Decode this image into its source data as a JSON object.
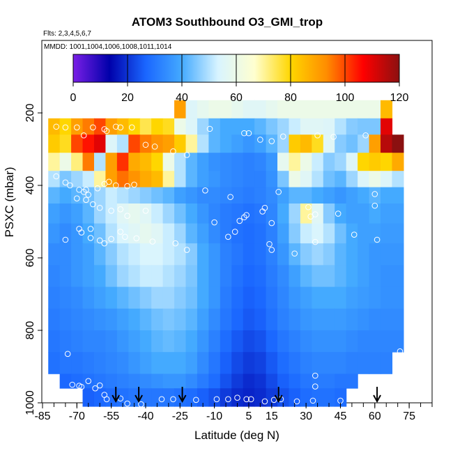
{
  "chart_data": {
    "type": "heatmap",
    "title": "ATOM3 Southbound O3_GMI_trop",
    "subtitle_flights": "Flts: 2,3,4,5,6,7",
    "subtitle_dates": "MMDD: 1001,1004,1006,1008,1011,1014",
    "xlabel": "Latitude (deg N)",
    "ylabel": "PSXC (mbar)",
    "xlim": [
      -85,
      85
    ],
    "ylim": [
      1000,
      0
    ],
    "x_ticks": [
      "-85",
      "-70",
      "-55",
      "-40",
      "-25",
      "-10",
      "5",
      "15",
      "30",
      "45",
      "60",
      "75"
    ],
    "x_tick_values": [
      -85,
      -70,
      -55,
      -40,
      -25,
      -10,
      5,
      15,
      30,
      45,
      60,
      75
    ],
    "y_ticks": [
      "200",
      "400",
      "600",
      "800",
      "1000"
    ],
    "y_tick_values": [
      200,
      400,
      600,
      800,
      1000
    ],
    "colorbar": {
      "min": 0,
      "max": 120,
      "tick_labels": [
        "0",
        "20",
        "40",
        "60",
        "80",
        "100",
        "120"
      ],
      "tick_values": [
        0,
        20,
        40,
        60,
        80,
        100,
        120
      ],
      "colors": [
        "#7a1fe6",
        "#0000aa",
        "#1a66ff",
        "#44aaff",
        "#d8f4ff",
        "#ffffd0",
        "#ffd600",
        "#ff8c00",
        "#ff0000",
        "#8b1010"
      ]
    },
    "latitude_bins": [
      -80,
      -75,
      -70,
      -65,
      -60,
      -55,
      -50,
      -45,
      -40,
      -35,
      -30,
      -25,
      -20,
      -15,
      -10,
      -5,
      0,
      5,
      10,
      15,
      20,
      25,
      30,
      35,
      40,
      45,
      50,
      55,
      60,
      65,
      70
    ],
    "pressure_layers": [
      {
        "p_top": 165,
        "p_bot": 215,
        "values": [
          null,
          null,
          null,
          null,
          null,
          null,
          null,
          null,
          null,
          null,
          null,
          90,
          55,
          58,
          60,
          60,
          58,
          56,
          56,
          58,
          60,
          60,
          60,
          60,
          60,
          60,
          60,
          60,
          60,
          85,
          null
        ]
      },
      {
        "p_top": 215,
        "p_bot": 260,
        "values": [
          85,
          80,
          90,
          95,
          100,
          90,
          85,
          80,
          75,
          80,
          78,
          60,
          55,
          48,
          42,
          40,
          40,
          40,
          42,
          45,
          48,
          52,
          56,
          56,
          55,
          50,
          46,
          45,
          45,
          110,
          null
        ]
      },
      {
        "p_top": 260,
        "p_bot": 310,
        "values": [
          82,
          78,
          100,
          105,
          110,
          55,
          50,
          100,
          95,
          92,
          90,
          82,
          70,
          50,
          42,
          40,
          38,
          36,
          38,
          42,
          48,
          82,
          85,
          78,
          56,
          46,
          44,
          48,
          90,
          115,
          120
        ]
      },
      {
        "p_top": 310,
        "p_bot": 360,
        "values": [
          70,
          60,
          72,
          95,
          50,
          90,
          102,
          88,
          85,
          80,
          60,
          50,
          42,
          38,
          35,
          34,
          33,
          32,
          33,
          36,
          58,
          70,
          60,
          52,
          46,
          48,
          55,
          80,
          82,
          80,
          88
        ]
      },
      {
        "p_top": 360,
        "p_bot": 405,
        "values": [
          50,
          45,
          48,
          52,
          70,
          90,
          96,
          92,
          88,
          85,
          70,
          50,
          42,
          38,
          36,
          34,
          33,
          32,
          32,
          35,
          45,
          60,
          56,
          50,
          44,
          42,
          48,
          55,
          60,
          55,
          50
        ]
      },
      {
        "p_top": 405,
        "p_bot": 450,
        "values": [
          42,
          40,
          42,
          44,
          48,
          52,
          50,
          48,
          46,
          44,
          42,
          38,
          36,
          34,
          34,
          33,
          32,
          31,
          32,
          34,
          38,
          42,
          42,
          40,
          38,
          36,
          38,
          40,
          42,
          40,
          40
        ]
      },
      {
        "p_top": 450,
        "p_bot": 505,
        "values": [
          38,
          36,
          38,
          42,
          48,
          52,
          56,
          58,
          56,
          52,
          48,
          44,
          40,
          36,
          33,
          31,
          30,
          29,
          30,
          33,
          40,
          48,
          70,
          56,
          46,
          40,
          38,
          38,
          40,
          38,
          38
        ]
      },
      {
        "p_top": 505,
        "p_bot": 560,
        "values": [
          36,
          34,
          36,
          40,
          44,
          50,
          54,
          56,
          58,
          56,
          52,
          48,
          42,
          38,
          34,
          31,
          29,
          28,
          29,
          32,
          38,
          46,
          52,
          54,
          50,
          44,
          40,
          38,
          38,
          37,
          37
        ]
      },
      {
        "p_top": 560,
        "p_bot": 620,
        "values": [
          34,
          34,
          36,
          38,
          42,
          46,
          50,
          52,
          54,
          54,
          52,
          50,
          46,
          40,
          36,
          32,
          30,
          28,
          29,
          32,
          36,
          42,
          46,
          48,
          46,
          42,
          40,
          38,
          36,
          36,
          36
        ]
      },
      {
        "p_top": 620,
        "p_bot": 680,
        "values": [
          33,
          34,
          36,
          38,
          40,
          44,
          48,
          50,
          52,
          52,
          50,
          48,
          45,
          40,
          36,
          32,
          29,
          27,
          28,
          31,
          34,
          38,
          42,
          44,
          44,
          42,
          40,
          38,
          36,
          35,
          35
        ]
      },
      {
        "p_top": 680,
        "p_bot": 740,
        "values": [
          32,
          33,
          34,
          36,
          38,
          40,
          42,
          44,
          46,
          48,
          48,
          46,
          44,
          40,
          36,
          31,
          28,
          26,
          27,
          30,
          33,
          36,
          38,
          40,
          40,
          40,
          38,
          37,
          36,
          35,
          35
        ]
      },
      {
        "p_top": 740,
        "p_bot": 800,
        "values": [
          31,
          32,
          33,
          34,
          35,
          36,
          38,
          40,
          42,
          44,
          45,
          44,
          42,
          38,
          34,
          30,
          27,
          25,
          26,
          29,
          32,
          34,
          36,
          37,
          37,
          37,
          36,
          35,
          34,
          34,
          34
        ]
      },
      {
        "p_top": 800,
        "p_bot": 860,
        "values": [
          30,
          31,
          32,
          33,
          33,
          34,
          36,
          38,
          40,
          42,
          43,
          42,
          40,
          36,
          32,
          28,
          25,
          23,
          24,
          27,
          30,
          32,
          34,
          35,
          35,
          35,
          34,
          33,
          33,
          33,
          33
        ]
      },
      {
        "p_top": 860,
        "p_bot": 920,
        "values": [
          29,
          30,
          30,
          31,
          32,
          33,
          34,
          36,
          38,
          40,
          40,
          40,
          38,
          34,
          30,
          26,
          23,
          21,
          22,
          25,
          28,
          30,
          32,
          33,
          33,
          33,
          32,
          32,
          32,
          32,
          null
        ]
      },
      {
        "p_top": 920,
        "p_bot": 960,
        "values": [
          null,
          27,
          28,
          29,
          30,
          31,
          32,
          33,
          34,
          35,
          36,
          36,
          34,
          31,
          28,
          24,
          21,
          19,
          20,
          23,
          26,
          28,
          30,
          31,
          31,
          30,
          30,
          null,
          null,
          null,
          null
        ]
      },
      {
        "p_top": 960,
        "p_bot": 1010,
        "values": [
          null,
          null,
          null,
          26,
          27,
          28,
          29,
          30,
          30,
          30,
          30,
          29,
          28,
          26,
          24,
          21,
          19,
          18,
          19,
          21,
          24,
          26,
          28,
          29,
          29,
          28,
          null,
          null,
          null,
          null,
          null
        ]
      }
    ],
    "observation_points": [
      [
        -79,
        238
      ],
      [
        -75,
        240
      ],
      [
        -70,
        240
      ],
      [
        -63,
        240
      ],
      [
        -58,
        245
      ],
      [
        -53,
        238
      ],
      [
        -51,
        240
      ],
      [
        -46,
        240
      ],
      [
        -57,
        250
      ],
      [
        -67,
        262
      ],
      [
        -40,
        288
      ],
      [
        -36,
        293
      ],
      [
        -28,
        306
      ],
      [
        -22,
        316
      ],
      [
        -12,
        244
      ],
      [
        3,
        256
      ],
      [
        5,
        256
      ],
      [
        10,
        274
      ],
      [
        15,
        278
      ],
      [
        20,
        265
      ],
      [
        35,
        262
      ],
      [
        42,
        266
      ],
      [
        56,
        262
      ],
      [
        -79,
        375
      ],
      [
        -75,
        392
      ],
      [
        -73,
        400
      ],
      [
        -69,
        412
      ],
      [
        -67,
        418
      ],
      [
        -66,
        412
      ],
      [
        -65,
        426
      ],
      [
        -61,
        408
      ],
      [
        -58,
        396
      ],
      [
        -56,
        390
      ],
      [
        -53,
        400
      ],
      [
        -48,
        402
      ],
      [
        -45,
        398
      ],
      [
        -70,
        436
      ],
      [
        -66,
        440
      ],
      [
        -63,
        452
      ],
      [
        -60,
        462
      ],
      [
        -55,
        470
      ],
      [
        -51,
        466
      ],
      [
        -48,
        484
      ],
      [
        -40,
        470
      ],
      [
        -14,
        414
      ],
      [
        -3,
        432
      ],
      [
        1,
        498
      ],
      [
        3,
        488
      ],
      [
        4,
        482
      ],
      [
        11,
        472
      ],
      [
        12,
        462
      ],
      [
        15,
        504
      ],
      [
        18,
        418
      ],
      [
        31,
        460
      ],
      [
        32,
        486
      ],
      [
        34,
        480
      ],
      [
        44,
        478
      ],
      [
        60,
        456
      ],
      [
        60,
        424
      ],
      [
        -75,
        550
      ],
      [
        -69,
        520
      ],
      [
        -68,
        530
      ],
      [
        -64,
        520
      ],
      [
        -64,
        545
      ],
      [
        -60,
        552
      ],
      [
        -58,
        560
      ],
      [
        -55,
        548
      ],
      [
        -51,
        528
      ],
      [
        -49,
        542
      ],
      [
        -44,
        546
      ],
      [
        -37,
        555
      ],
      [
        -27,
        560
      ],
      [
        -22,
        578
      ],
      [
        -10,
        502
      ],
      [
        -4,
        542
      ],
      [
        -1,
        528
      ],
      [
        14,
        562
      ],
      [
        15,
        578
      ],
      [
        25,
        588
      ],
      [
        34,
        556
      ],
      [
        51,
        536
      ],
      [
        61,
        550
      ],
      [
        -74,
        865
      ],
      [
        -72,
        950
      ],
      [
        -69,
        953
      ],
      [
        -68,
        956
      ],
      [
        -65,
        940
      ],
      [
        -62,
        960
      ],
      [
        -60,
        952
      ],
      [
        -58,
        978
      ],
      [
        -57,
        990
      ],
      [
        -51,
        988
      ],
      [
        -48,
        1002
      ],
      [
        -42,
        1004
      ],
      [
        -33,
        990
      ],
      [
        -28,
        990
      ],
      [
        -18,
        992
      ],
      [
        -9,
        990
      ],
      [
        -4,
        990
      ],
      [
        0,
        986
      ],
      [
        4,
        990
      ],
      [
        6,
        990
      ],
      [
        12,
        996
      ],
      [
        16,
        992
      ],
      [
        19,
        990
      ],
      [
        26,
        996
      ],
      [
        33,
        994
      ],
      [
        34,
        955
      ],
      [
        34,
        925
      ],
      [
        45,
        994
      ],
      [
        59,
        942
      ],
      [
        71,
        858
      ]
    ],
    "arrow_latitudes": [
      -53,
      -43,
      -24,
      18,
      61
    ]
  }
}
